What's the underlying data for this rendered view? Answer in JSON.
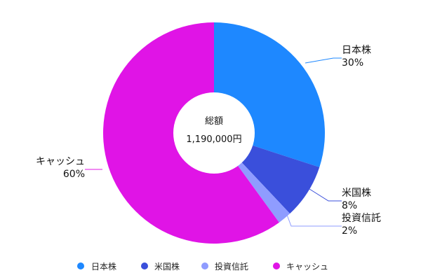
{
  "chart_data": {
    "type": "pie",
    "title": "",
    "center_label": {
      "title": "総額",
      "value": "1,190,000円"
    },
    "series": [
      {
        "name": "日本株",
        "value": 30,
        "label": "30%",
        "color": "#1E88FF"
      },
      {
        "name": "米国株",
        "value": 8,
        "label": "8%",
        "color": "#3A4FDB"
      },
      {
        "name": "投資信託",
        "value": 2,
        "label": "2%",
        "color": "#8F9CFF"
      },
      {
        "name": "キャッシュ",
        "value": 60,
        "label": "60%",
        "color": "#E014E6"
      }
    ],
    "legend": {
      "placement": "bottom"
    }
  }
}
